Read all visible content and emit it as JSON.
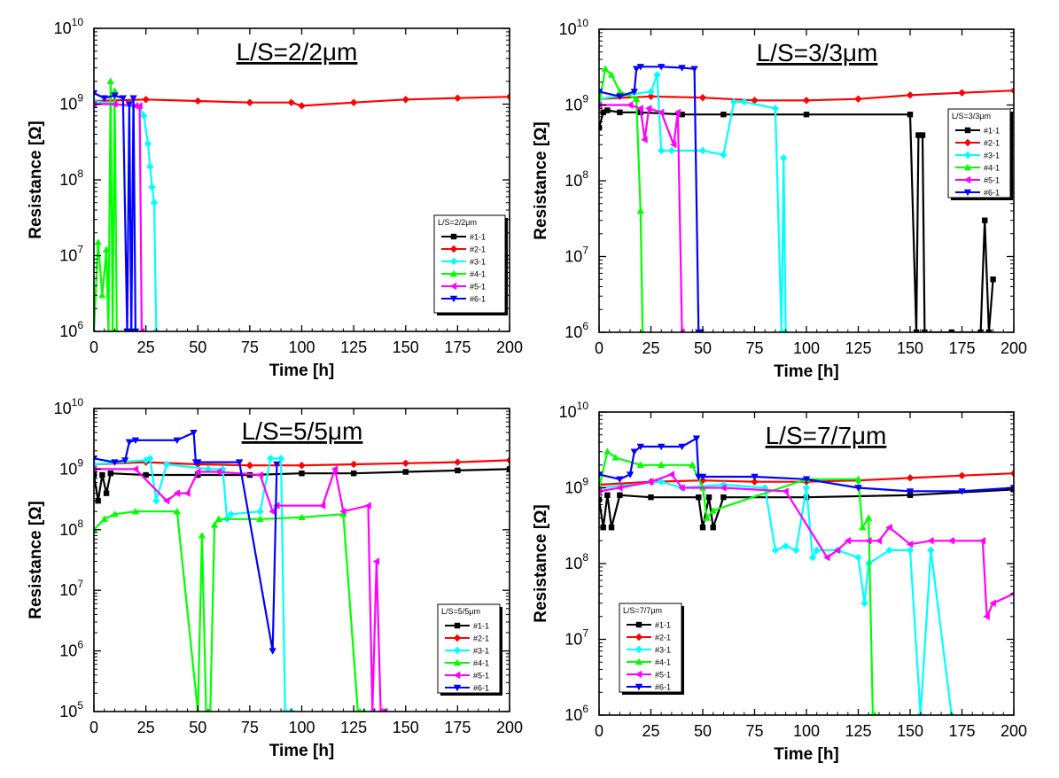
{
  "chart_data": [
    {
      "type": "line",
      "title": "L/S=2/2μm",
      "xlabel": "Time [h]",
      "ylabel": "Resistance [Ω]",
      "xlim": [
        0,
        200
      ],
      "ylim": [
        1000000.0,
        10000000000.0
      ],
      "yscale": "log",
      "x_ticks": [
        "0",
        "25",
        "50",
        "75",
        "100",
        "125",
        "150",
        "175",
        "200"
      ],
      "y_ticks": [
        {
          "base": "10",
          "exp": "6"
        },
        {
          "base": "10",
          "exp": "7"
        },
        {
          "base": "10",
          "exp": "8"
        },
        {
          "base": "10",
          "exp": "9"
        },
        {
          "base": "10",
          "exp": "10"
        }
      ],
      "legend_title": "L/S=2/2μm",
      "legend_position": "lower-right",
      "series": [
        {
          "name": "#1-1",
          "color": "#000000",
          "marker": "square",
          "x": [],
          "y": []
        },
        {
          "name": "#2-1",
          "color": "#ff0000",
          "marker": "diamond",
          "x": [
            0,
            25,
            50,
            75,
            95,
            100,
            125,
            150,
            175,
            200
          ],
          "y": [
            1100000000.0,
            1150000000.0,
            1100000000.0,
            1050000000.0,
            1050000000.0,
            950000000.0,
            1050000000.0,
            1150000000.0,
            1200000000.0,
            1250000000.0
          ]
        },
        {
          "name": "#3-1",
          "color": "#00ffff",
          "marker": "diamond",
          "x": [
            0,
            10,
            22,
            24,
            26,
            27,
            28,
            29,
            30
          ],
          "y": [
            1100000000.0,
            1000000000.0,
            900000000.0,
            700000000.0,
            300000000.0,
            150000000.0,
            80000000.0,
            50000000.0,
            1000000.0
          ]
        },
        {
          "name": "#4-1",
          "color": "#00ff00",
          "marker": "triangle-up",
          "x": [
            0,
            2,
            4,
            6,
            7,
            8,
            9,
            10,
            11
          ],
          "y": [
            1000000.0,
            15000000.0,
            3000000.0,
            12000000.0,
            1000000.0,
            2000000000.0,
            1000000.0,
            1500000000.0,
            1000000.0
          ]
        },
        {
          "name": "#5-1",
          "color": "#ff00ff",
          "marker": "triangle-left",
          "x": [
            0,
            10,
            20,
            22,
            23
          ],
          "y": [
            1000000000.0,
            1000000000.0,
            950000000.0,
            950000000.0,
            1000000.0
          ]
        },
        {
          "name": "#6-1",
          "color": "#0000ff",
          "marker": "triangle-down",
          "x": [
            0,
            5,
            10,
            14,
            16,
            17,
            18,
            19,
            20
          ],
          "y": [
            1400000000.0,
            1200000000.0,
            1300000000.0,
            1200000000.0,
            1000000.0,
            1000000000.0,
            1000000.0,
            1200000000.0,
            1000000.0
          ]
        }
      ]
    },
    {
      "type": "line",
      "title": "L/S=3/3μm",
      "xlabel": "Time [h]",
      "ylabel": "Resistance [Ω]",
      "xlim": [
        0,
        200
      ],
      "ylim": [
        1000000.0,
        10000000000.0
      ],
      "yscale": "log",
      "x_ticks": [
        "0",
        "25",
        "50",
        "75",
        "100",
        "125",
        "150",
        "175",
        "200"
      ],
      "y_ticks": [
        {
          "base": "10",
          "exp": "6"
        },
        {
          "base": "10",
          "exp": "7"
        },
        {
          "base": "10",
          "exp": "8"
        },
        {
          "base": "10",
          "exp": "9"
        },
        {
          "base": "10",
          "exp": "10"
        }
      ],
      "legend_title": "L/S=3/3μm",
      "legend_position": "right",
      "series": [
        {
          "name": "#1-1",
          "color": "#000000",
          "marker": "square",
          "x": [
            0,
            2,
            4,
            10,
            20,
            40,
            60,
            100,
            150,
            153,
            154,
            156,
            157,
            170,
            184,
            186,
            188,
            190
          ],
          "y": [
            500000000.0,
            800000000.0,
            850000000.0,
            800000000.0,
            800000000.0,
            750000000.0,
            750000000.0,
            750000000.0,
            750000000.0,
            1000000.0,
            400000000.0,
            400000000.0,
            1000000.0,
            1000000.0,
            1000000.0,
            30000000.0,
            1000000.0,
            5000000.0
          ]
        },
        {
          "name": "#2-1",
          "color": "#ff0000",
          "marker": "diamond",
          "x": [
            0,
            25,
            50,
            75,
            100,
            125,
            150,
            175,
            200
          ],
          "y": [
            1200000000.0,
            1300000000.0,
            1250000000.0,
            1150000000.0,
            1150000000.0,
            1200000000.0,
            1350000000.0,
            1450000000.0,
            1550000000.0
          ]
        },
        {
          "name": "#3-1",
          "color": "#00ffff",
          "marker": "diamond",
          "x": [
            0,
            25,
            28,
            30,
            35,
            50,
            60,
            65,
            70,
            85,
            88,
            89,
            90
          ],
          "y": [
            1200000000.0,
            1500000000.0,
            2500000000.0,
            250000000.0,
            250000000.0,
            250000000.0,
            220000000.0,
            1100000000.0,
            1100000000.0,
            900000000.0,
            1000000.0,
            200000000.0,
            1000000.0
          ]
        },
        {
          "name": "#4-1",
          "color": "#00ff00",
          "marker": "triangle-up",
          "x": [
            0,
            3,
            6,
            10,
            18,
            20,
            21
          ],
          "y": [
            1000000000.0,
            3000000000.0,
            2500000000.0,
            1500000000.0,
            1200000000.0,
            40000000.0,
            1000000.0
          ]
        },
        {
          "name": "#5-1",
          "color": "#ff00ff",
          "marker": "triangle-left",
          "x": [
            0,
            15,
            20,
            22,
            24,
            30,
            36,
            38,
            40
          ],
          "y": [
            1000000000.0,
            1000000000.0,
            900000000.0,
            350000000.0,
            900000000.0,
            800000000.0,
            300000000.0,
            800000000.0,
            1000000.0
          ]
        },
        {
          "name": "#6-1",
          "color": "#0000ff",
          "marker": "triangle-down",
          "x": [
            0,
            10,
            17,
            18,
            20,
            30,
            40,
            46,
            48,
            49
          ],
          "y": [
            1500000000.0,
            1300000000.0,
            1500000000.0,
            3000000000.0,
            3200000000.0,
            3200000000.0,
            3100000000.0,
            3000000000.0,
            1000000.0,
            1000000.0
          ]
        }
      ]
    },
    {
      "type": "line",
      "title": "L/S=5/5μm",
      "xlabel": "Time [h]",
      "ylabel": "Resistance [Ω]",
      "xlim": [
        0,
        200
      ],
      "ylim": [
        100000.0,
        10000000000.0
      ],
      "yscale": "log",
      "x_ticks": [
        "0",
        "25",
        "50",
        "75",
        "100",
        "125",
        "150",
        "175",
        "200"
      ],
      "y_ticks": [
        {
          "base": "10",
          "exp": "5"
        },
        {
          "base": "10",
          "exp": "6"
        },
        {
          "base": "10",
          "exp": "7"
        },
        {
          "base": "10",
          "exp": "8"
        },
        {
          "base": "10",
          "exp": "9"
        },
        {
          "base": "10",
          "exp": "10"
        }
      ],
      "legend_title": "L/S=5/5μm",
      "legend_position": "lower-right",
      "series": [
        {
          "name": "#1-1",
          "color": "#000000",
          "marker": "square",
          "x": [
            0,
            2,
            4,
            6,
            8,
            25,
            50,
            75,
            100,
            125,
            150,
            175,
            200
          ],
          "y": [
            800000000.0,
            300000000.0,
            800000000.0,
            400000000.0,
            850000000.0,
            800000000.0,
            800000000.0,
            800000000.0,
            850000000.0,
            850000000.0,
            900000000.0,
            950000000.0,
            1000000000.0
          ]
        },
        {
          "name": "#2-1",
          "color": "#ff0000",
          "marker": "diamond",
          "x": [
            0,
            25,
            50,
            75,
            100,
            125,
            150,
            175,
            200
          ],
          "y": [
            1200000000.0,
            1300000000.0,
            1200000000.0,
            1150000000.0,
            1150000000.0,
            1200000000.0,
            1250000000.0,
            1300000000.0,
            1400000000.0
          ]
        },
        {
          "name": "#3-1",
          "color": "#00ffff",
          "marker": "diamond",
          "x": [
            0,
            25,
            27,
            30,
            35,
            55,
            62,
            64,
            66,
            80,
            85,
            90,
            92,
            95
          ],
          "y": [
            1200000000.0,
            1400000000.0,
            1500000000.0,
            300000000.0,
            1200000000.0,
            1000000000.0,
            1000000000.0,
            150000000.0,
            180000000.0,
            200000000.0,
            1500000000.0,
            1500000000.0,
            100000.0,
            100000.0
          ]
        },
        {
          "name": "#4-1",
          "color": "#00ff00",
          "marker": "triangle-up",
          "x": [
            0,
            5,
            10,
            20,
            40,
            50,
            52,
            54,
            56,
            58,
            60,
            80,
            100,
            120,
            127,
            128,
            130
          ],
          "y": [
            100000000.0,
            150000000.0,
            180000000.0,
            200000000.0,
            200000000.0,
            100000.0,
            80000000.0,
            100000.0,
            100000.0,
            120000000.0,
            150000000.0,
            150000000.0,
            160000000.0,
            180000000.0,
            100000.0,
            100000.0,
            100000.0
          ]
        },
        {
          "name": "#5-1",
          "color": "#ff00ff",
          "marker": "triangle-left",
          "x": [
            0,
            20,
            35,
            40,
            45,
            50,
            60,
            80,
            86,
            88,
            110,
            116,
            120,
            132,
            134,
            136,
            138,
            140
          ],
          "y": [
            1000000000.0,
            1000000000.0,
            300000000.0,
            400000000.0,
            400000000.0,
            900000000.0,
            900000000.0,
            800000000.0,
            200000000.0,
            250000000.0,
            250000000.0,
            1000000000.0,
            200000000.0,
            250000000.0,
            100000.0,
            30000000.0,
            100000.0,
            100000.0
          ]
        },
        {
          "name": "#6-1",
          "color": "#0000ff",
          "marker": "triangle-down",
          "x": [
            0,
            10,
            15,
            17,
            20,
            40,
            48,
            49,
            50,
            70,
            86,
            88
          ],
          "y": [
            1500000000.0,
            1300000000.0,
            1400000000.0,
            2800000000.0,
            3000000000.0,
            3000000000.0,
            4000000000.0,
            1300000000.0,
            1300000000.0,
            1300000000.0,
            1000000.0,
            1200000000.0
          ]
        }
      ]
    },
    {
      "type": "line",
      "title": "L/S=7/7μm",
      "xlabel": "Time [h]",
      "ylabel": "Resistance [Ω]",
      "xlim": [
        0,
        200
      ],
      "ylim": [
        1000000.0,
        10000000000.0
      ],
      "yscale": "log",
      "x_ticks": [
        "0",
        "25",
        "50",
        "75",
        "100",
        "125",
        "150",
        "175",
        "200"
      ],
      "y_ticks": [
        {
          "base": "10",
          "exp": "6"
        },
        {
          "base": "10",
          "exp": "7"
        },
        {
          "base": "10",
          "exp": "8"
        },
        {
          "base": "10",
          "exp": "9"
        },
        {
          "base": "10",
          "exp": "10"
        }
      ],
      "legend_title": "L/S=7/7μm",
      "legend_position": "lower-left",
      "series": [
        {
          "name": "#1-1",
          "color": "#000000",
          "marker": "square",
          "x": [
            0,
            2,
            4,
            6,
            10,
            25,
            48,
            50,
            53,
            55,
            60,
            100,
            150,
            200
          ],
          "y": [
            700000000.0,
            300000000.0,
            800000000.0,
            300000000.0,
            800000000.0,
            750000000.0,
            750000000.0,
            300000000.0,
            750000000.0,
            300000000.0,
            750000000.0,
            750000000.0,
            800000000.0,
            950000000.0
          ]
        },
        {
          "name": "#2-1",
          "color": "#ff0000",
          "marker": "diamond",
          "x": [
            0,
            25,
            50,
            75,
            100,
            125,
            150,
            175,
            200
          ],
          "y": [
            1100000000.0,
            1200000000.0,
            1250000000.0,
            1200000000.0,
            1200000000.0,
            1250000000.0,
            1350000000.0,
            1450000000.0,
            1550000000.0
          ]
        },
        {
          "name": "#3-1",
          "color": "#00ffff",
          "marker": "diamond",
          "x": [
            0,
            30,
            40,
            60,
            80,
            85,
            90,
            95,
            100,
            103,
            105,
            115,
            125,
            128,
            130,
            140,
            150,
            155,
            160,
            170
          ],
          "y": [
            1000000000.0,
            1200000000.0,
            1000000000.0,
            1100000000.0,
            1000000000.0,
            150000000.0,
            170000000.0,
            150000000.0,
            1000000000.0,
            120000000.0,
            150000000.0,
            150000000.0,
            120000000.0,
            30000000.0,
            100000000.0,
            150000000.0,
            150000000.0,
            1000000.0,
            150000000.0,
            1000000.0
          ]
        },
        {
          "name": "#4-1",
          "color": "#00ff00",
          "marker": "triangle-up",
          "x": [
            0,
            4,
            8,
            20,
            30,
            45,
            50,
            52,
            55,
            100,
            125,
            127,
            130,
            132,
            133
          ],
          "y": [
            1000000000.0,
            3000000000.0,
            2500000000.0,
            2000000000.0,
            2000000000.0,
            2000000000.0,
            1000000000.0,
            400000000.0,
            500000000.0,
            1300000000.0,
            1300000000.0,
            300000000.0,
            400000000.0,
            1000000.0,
            1000000.0
          ]
        },
        {
          "name": "#5-1",
          "color": "#ff00ff",
          "marker": "triangle-left",
          "x": [
            0,
            10,
            25,
            35,
            40,
            60,
            90,
            110,
            115,
            120,
            130,
            135,
            140,
            150,
            160,
            170,
            185,
            187,
            190,
            200
          ],
          "y": [
            900000000.0,
            1000000000.0,
            1200000000.0,
            1500000000.0,
            1000000000.0,
            1000000000.0,
            900000000.0,
            120000000.0,
            150000000.0,
            200000000.0,
            200000000.0,
            200000000.0,
            300000000.0,
            180000000.0,
            200000000.0,
            200000000.0,
            200000000.0,
            20000000.0,
            30000000.0,
            40000000.0
          ]
        },
        {
          "name": "#6-1",
          "color": "#0000ff",
          "marker": "triangle-down",
          "x": [
            0,
            10,
            15,
            17,
            20,
            30,
            40,
            47,
            48,
            50,
            75,
            100,
            125,
            150,
            175,
            200
          ],
          "y": [
            1500000000.0,
            1300000000.0,
            1500000000.0,
            3000000000.0,
            3500000000.0,
            3500000000.0,
            3500000000.0,
            4500000000.0,
            1400000000.0,
            1400000000.0,
            1400000000.0,
            1300000000.0,
            1000000000.0,
            900000000.0,
            900000000.0,
            1000000000.0
          ]
        }
      ]
    }
  ]
}
